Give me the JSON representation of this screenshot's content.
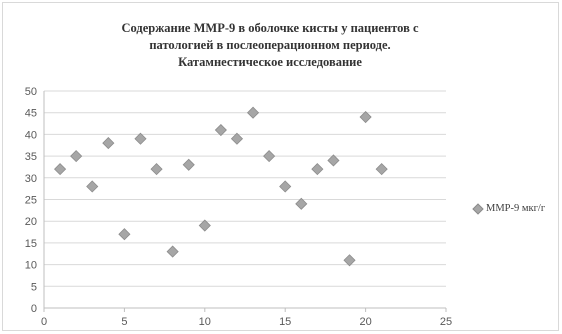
{
  "chart_data": {
    "type": "scatter",
    "title_lines": [
      "Содержание ММР-9 в оболочке кисты у пациентов с",
      "патологией в послеоперационном периоде.",
      "Катамнестическое исследование"
    ],
    "xlim": [
      0,
      25
    ],
    "ylim": [
      0,
      50
    ],
    "x_ticks": [
      "0",
      "5",
      "10",
      "15",
      "20",
      "25"
    ],
    "y_ticks": [
      "0",
      "5",
      "10",
      "15",
      "20",
      "25",
      "30",
      "35",
      "40",
      "45",
      "50"
    ],
    "grid": "horizontal",
    "legend_position": "right",
    "series": [
      {
        "name": "ММР-9 мкг/г",
        "color": "#a6a6a6",
        "marker": "diamond",
        "x": [
          1,
          2,
          3,
          4,
          5,
          6,
          7,
          8,
          9,
          10,
          11,
          12,
          13,
          14,
          15,
          16,
          17,
          18,
          19,
          20,
          21
        ],
        "y": [
          32,
          35,
          28,
          38,
          17,
          39,
          32,
          13,
          33,
          19,
          41,
          39,
          45,
          35,
          28,
          24,
          32,
          34,
          11,
          44,
          32
        ]
      }
    ]
  }
}
